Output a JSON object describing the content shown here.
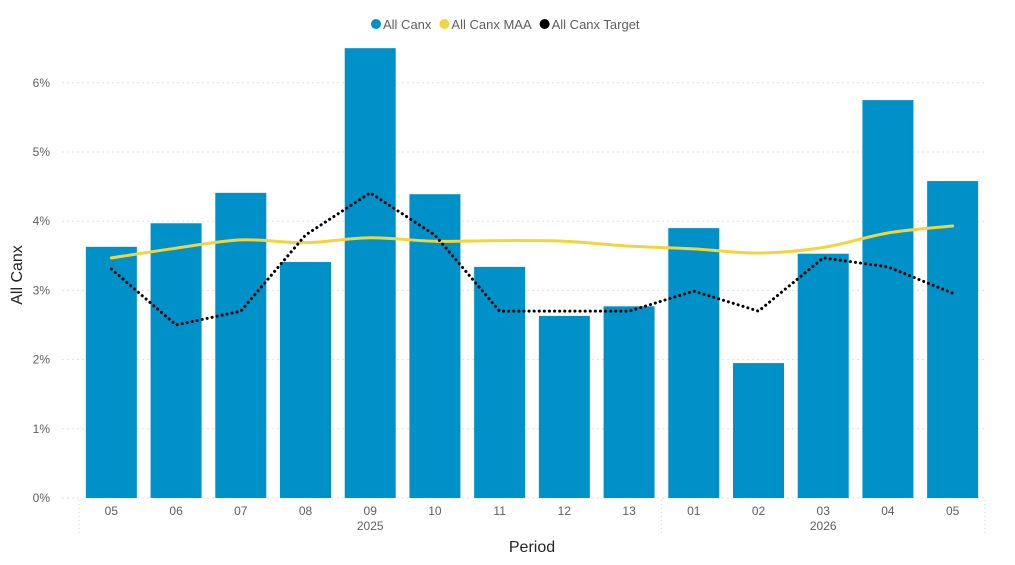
{
  "chart_data": {
    "type": "bar",
    "title": "",
    "xlabel": "Period",
    "ylabel": "All Canx",
    "ylim": [
      0,
      6.5
    ],
    "y_ticks": [
      "0%",
      "1%",
      "2%",
      "3%",
      "4%",
      "5%",
      "6%"
    ],
    "y_tick_values": [
      0,
      1,
      2,
      3,
      4,
      5,
      6
    ],
    "grid": true,
    "legend_position": "top-center",
    "categories": [
      "05",
      "06",
      "07",
      "08",
      "09",
      "10",
      "11",
      "12",
      "13",
      "01",
      "02",
      "03",
      "04",
      "05"
    ],
    "year_groups": [
      {
        "label": "2025",
        "start": 0,
        "end": 8
      },
      {
        "label": "2026",
        "start": 9,
        "end": 13
      }
    ],
    "series": [
      {
        "name": "All Canx",
        "kind": "bar",
        "color": "#0091C8",
        "values": [
          3.63,
          3.97,
          4.41,
          3.41,
          6.5,
          4.39,
          3.34,
          2.63,
          2.77,
          3.9,
          1.95,
          3.53,
          5.75,
          4.58
        ]
      },
      {
        "name": "All Canx MAA",
        "kind": "line",
        "color": "#F2D43D",
        "values": [
          3.47,
          3.61,
          3.73,
          3.69,
          3.76,
          3.71,
          3.72,
          3.71,
          3.64,
          3.6,
          3.54,
          3.62,
          3.83,
          3.93
        ]
      },
      {
        "name": "All Canx Target",
        "kind": "dotted-line",
        "color": "#000000",
        "values": [
          3.31,
          2.5,
          2.7,
          3.8,
          4.41,
          3.8,
          2.7,
          2.7,
          2.7,
          2.99,
          2.7,
          3.47,
          3.34,
          2.96
        ]
      }
    ]
  }
}
